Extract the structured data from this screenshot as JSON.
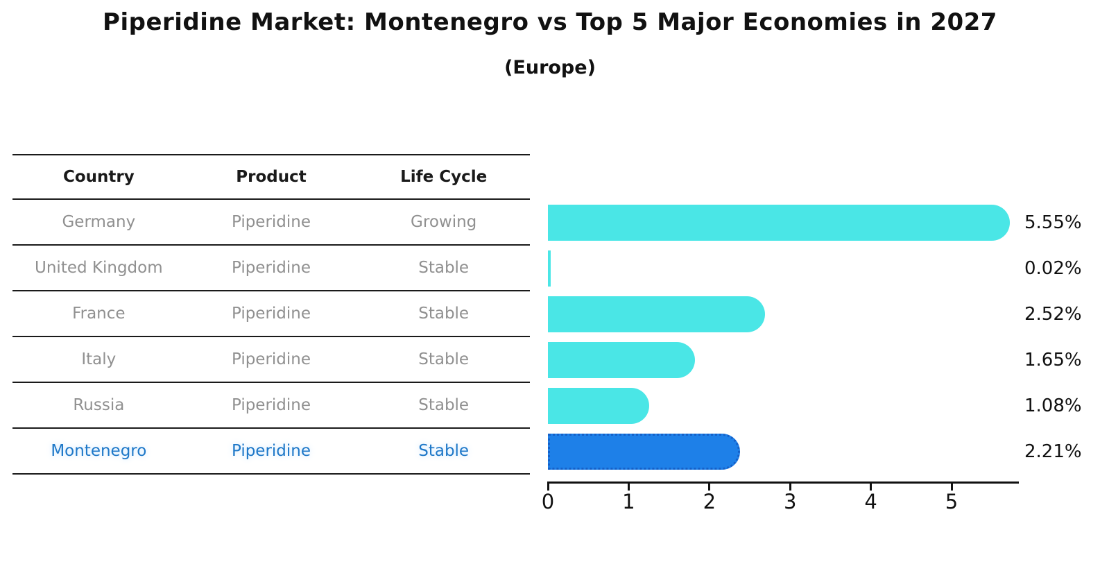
{
  "title": "Piperidine Market: Montenegro vs Top 5 Major Economies in 2027",
  "subtitle": "(Europe)",
  "table": {
    "headers": [
      "Country",
      "Product",
      "Life Cycle"
    ],
    "rows": [
      {
        "country": "Germany",
        "product": "Piperidine",
        "life_cycle": "Growing",
        "highlighted": false
      },
      {
        "country": "United Kingdom",
        "product": "Piperidine",
        "life_cycle": "Stable",
        "highlighted": false
      },
      {
        "country": "France",
        "product": "Piperidine",
        "life_cycle": "Stable",
        "highlighted": false
      },
      {
        "country": "Italy",
        "product": "Piperidine",
        "life_cycle": "Stable",
        "highlighted": false
      },
      {
        "country": "Russia",
        "product": "Piperidine",
        "life_cycle": "Stable",
        "highlighted": false
      },
      {
        "country": "Montenegro",
        "product": "Piperidine",
        "life_cycle": "Stable",
        "highlighted": true
      }
    ]
  },
  "chart_data": {
    "type": "bar",
    "orientation": "horizontal",
    "title": "Piperidine Market: Montenegro vs Top 5 Major Economies in 2027 (Europe)",
    "categories": [
      "Germany",
      "United Kingdom",
      "France",
      "Italy",
      "Russia",
      "Montenegro"
    ],
    "values": [
      5.55,
      0.02,
      2.52,
      1.65,
      1.08,
      2.21
    ],
    "value_labels": [
      "5.55%",
      "0.02%",
      "2.52%",
      "1.65%",
      "1.08%",
      "2.21%"
    ],
    "xlim": [
      0,
      5.9
    ],
    "xticks": [
      0,
      1,
      2,
      3,
      4,
      5
    ],
    "grid": false,
    "legend": null,
    "highlight_index": 5,
    "bar_color": "#4AE6E6",
    "highlight_bar_color": "#1E80E8",
    "highlight_bar_edge_color": "#1560C8",
    "highlight_text_color": "#1E78C8"
  },
  "colors": {
    "background": "#FFFFFF",
    "bar_cyan": "#4AE6E6",
    "bar_blue": "#1E80E8",
    "bar_blue_edge": "#1560C8",
    "table_text_gray": "#909090",
    "table_header_black": "#1A1A1A",
    "axis_black": "#111111",
    "highlight_text_blue": "#1E78C8"
  }
}
